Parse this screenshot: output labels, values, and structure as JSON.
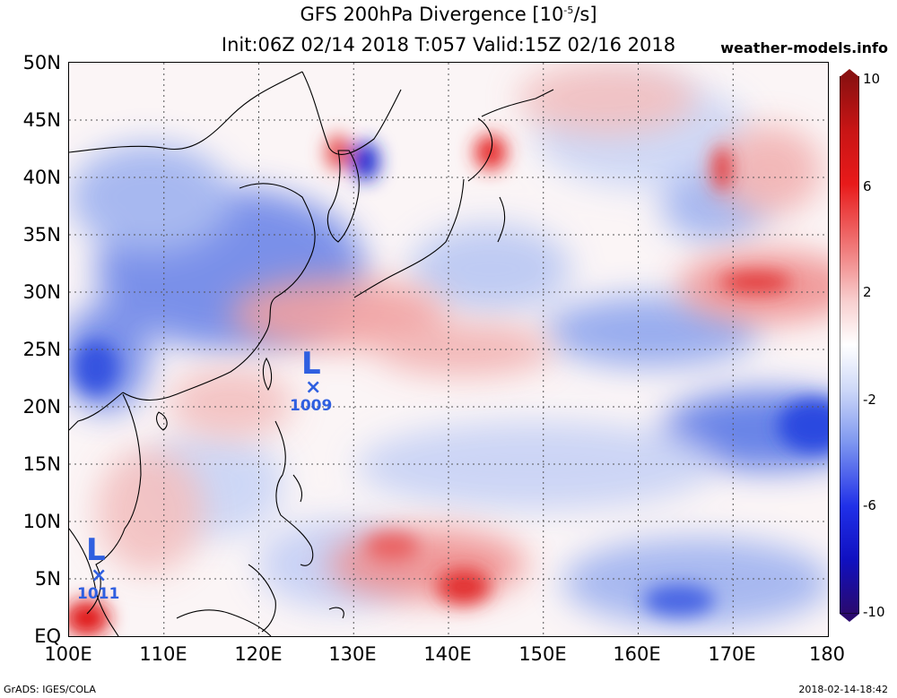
{
  "header": {
    "title_main": "GFS 200hPa Divergence [10",
    "title_exp": "-5",
    "title_unit": "/s]",
    "subtitle": "Init:06Z 02/14 2018 T:057 Valid:15Z 02/16 2018",
    "site": "weather-models.info"
  },
  "map": {
    "lat_labels": [
      "50N",
      "45N",
      "40N",
      "35N",
      "30N",
      "25N",
      "20N",
      "15N",
      "10N",
      "5N",
      "EQ"
    ],
    "lon_labels": [
      "100E",
      "110E",
      "120E",
      "130E",
      "140E",
      "150E",
      "160E",
      "170E",
      "180"
    ],
    "lat_range": [
      0,
      50
    ],
    "lon_range": [
      100,
      180
    ],
    "grid": "dotted"
  },
  "pressure_systems": [
    {
      "type": "L",
      "marker": "×",
      "pressure": "1009"
    },
    {
      "type": "L",
      "marker": "×",
      "pressure": "1011"
    }
  ],
  "colorbar": {
    "labels": [
      "10",
      "6",
      "2",
      "-2",
      "-6",
      "-10"
    ],
    "colors": [
      "#2a0a6e",
      "#1b1bd6",
      "#3a63f0",
      "#8aa5f5",
      "#d3ddf8",
      "#ffffff",
      "#f6cccc",
      "#f08a8a",
      "#e83a3a",
      "#d41010",
      "#8a1010"
    ]
  },
  "footer": {
    "left": "GrADS: IGES/COLA",
    "right": "2018-02-14-18:42"
  }
}
